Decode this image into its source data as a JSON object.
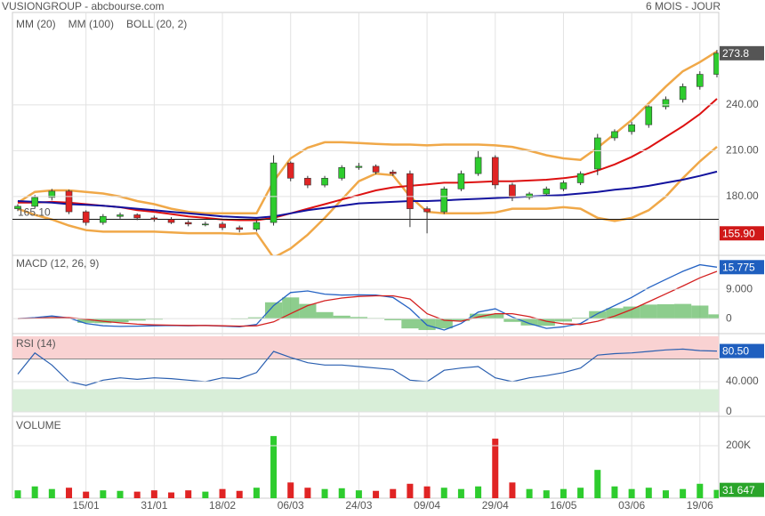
{
  "header": {
    "title": "VUSIONGROUP - abcbourse.com",
    "period": "6 MOIS - JOUR"
  },
  "chart_data": [
    {
      "type": "candlestick",
      "up_color": "#2ecc2e",
      "down_color": "#e02424",
      "open": [
        172,
        173.6,
        179.4,
        183.5,
        170,
        163,
        167,
        168,
        166,
        165,
        163,
        162,
        162,
        159.6,
        158.5,
        163,
        202,
        192,
        187.5,
        192,
        199,
        199.8,
        196,
        195,
        172,
        170,
        185,
        195,
        205.6,
        187.6,
        179.4,
        181.7,
        185,
        189,
        198,
        218.4,
        222.5,
        227,
        238.8,
        243.5,
        252,
        260
      ],
      "high": [
        175,
        181,
        185,
        184.5,
        171,
        168.5,
        169.5,
        169,
        167.5,
        166.5,
        164.5,
        163.5,
        163.5,
        161,
        164.5,
        207,
        203,
        193.5,
        193.5,
        200.5,
        202,
        201,
        197.5,
        197,
        173.5,
        186.5,
        197,
        210,
        207,
        189,
        183,
        186.5,
        190.5,
        196.5,
        221,
        224,
        229,
        240,
        245.5,
        254,
        262,
        276
      ],
      "low": [
        170.5,
        172,
        177.5,
        168.5,
        161,
        161.5,
        165.5,
        164.5,
        163.5,
        162,
        160.5,
        160.5,
        158,
        156.5,
        157,
        161,
        190,
        185.5,
        186,
        190.5,
        197.5,
        194.5,
        193.5,
        160,
        155.9,
        168.5,
        183.5,
        193.5,
        185,
        177,
        178,
        180,
        183.5,
        187.5,
        194,
        216.5,
        220.5,
        225,
        237,
        241.5,
        250,
        258
      ],
      "close": [
        173.6,
        179.4,
        183.5,
        170,
        163,
        167,
        168,
        166,
        165,
        163,
        162,
        162,
        159.6,
        158.5,
        163,
        202,
        192,
        187.5,
        192,
        199,
        199.8,
        196,
        195,
        172,
        170,
        185,
        195,
        205.6,
        187.6,
        179.4,
        181.7,
        185,
        189,
        195,
        218.4,
        222.5,
        227,
        238.8,
        243.5,
        252,
        260,
        273.8
      ],
      "series": [
        {
          "name": "MM (20)",
          "color": "#dd1111",
          "values": [
            176,
            176,
            176.5,
            176,
            175,
            174,
            173,
            171,
            170,
            168.5,
            167,
            166,
            165,
            164.5,
            164.5,
            166,
            169,
            172,
            175,
            178,
            181,
            184,
            186,
            187,
            188,
            189,
            189,
            189.5,
            190,
            190,
            190.5,
            191,
            192,
            193.5,
            197,
            201,
            206,
            212,
            219,
            226,
            234,
            244
          ]
        },
        {
          "name": "MM (100)",
          "color": "#12129e",
          "values": [
            177,
            176.5,
            176,
            175,
            174.5,
            174,
            173,
            172,
            171,
            170,
            169,
            168,
            167,
            166.5,
            166,
            167,
            169,
            171,
            172.5,
            174,
            175.5,
            176,
            176.5,
            177,
            177,
            177.5,
            178,
            178.5,
            179,
            179.5,
            180,
            180.5,
            181,
            182,
            183,
            184.5,
            185.5,
            187,
            189,
            191,
            193.5,
            196.3
          ]
        }
      ],
      "bands": {
        "name": "BOLL (20, 2)",
        "color": "#f0a848",
        "upper": [
          176,
          183,
          184,
          184,
          183,
          182,
          180,
          177,
          175,
          172,
          170,
          169,
          169,
          169,
          169,
          190,
          205,
          212,
          215.5,
          215.5,
          215,
          214.5,
          214,
          214,
          213.5,
          214,
          214,
          214,
          213.5,
          212.5,
          210,
          207,
          205,
          204,
          212,
          221,
          230,
          241,
          252,
          262,
          268,
          275
        ],
        "lower": [
          172,
          168,
          165,
          161,
          158,
          157,
          157,
          157,
          157,
          156.5,
          156,
          156,
          156,
          155.5,
          156,
          140,
          146,
          155,
          166,
          178,
          190,
          195,
          194,
          180,
          170,
          169,
          169,
          169,
          169.5,
          172,
          172,
          172,
          173,
          172,
          166,
          164,
          166,
          171,
          180,
          192,
          203,
          212.6
        ]
      },
      "reference_line": {
        "value": 165.1,
        "label": "165.10"
      },
      "low_label": {
        "value": 155.9,
        "label": "155.90"
      },
      "ylim": [
        141.5,
        300.5
      ],
      "yticks": [
        {
          "value": 180,
          "label": "180.00"
        },
        {
          "value": 210,
          "label": "210.00"
        },
        {
          "value": 240,
          "label": "240.00"
        }
      ],
      "grid": true
    },
    {
      "type": "macd",
      "title": "MACD (12, 26, 9)",
      "series": [
        {
          "color": "#2563c4",
          "values": [
            0,
            0.3,
            0.8,
            0.2,
            -1.5,
            -2.2,
            -2.4,
            -2.3,
            -2.2,
            -2.1,
            -2.2,
            -2.1,
            -2.3,
            -2.5,
            -1.8,
            4,
            8,
            8.5,
            7.5,
            7.2,
            7.3,
            7.2,
            6.5,
            3,
            -2,
            -3.5,
            -1.5,
            2,
            3,
            0.5,
            -1.5,
            -3,
            -2.5,
            -1.5,
            1.5,
            4,
            6.5,
            9.5,
            12,
            14.5,
            16.5,
            15.775
          ]
        },
        {
          "color": "#d42020",
          "values": [
            0,
            0.1,
            0.3,
            0.3,
            -0.2,
            -0.8,
            -1.3,
            -1.7,
            -1.9,
            -2,
            -2.1,
            -2.1,
            -2.2,
            -2.3,
            -2.2,
            -1,
            1.5,
            4,
            5.5,
            6.3,
            6.8,
            7,
            7,
            6,
            1.5,
            -0.5,
            -0.8,
            0.5,
            1.5,
            1.5,
            0.6,
            -0.8,
            -1.6,
            -1.8,
            -0.8,
            0.8,
            2.8,
            5.2,
            7.6,
            10,
            12.5,
            14.5
          ]
        }
      ],
      "histogram": {
        "color": "#5cb85c",
        "values": [
          0,
          0.2,
          0.5,
          -0.1,
          -1.3,
          -1.4,
          -1.1,
          -0.6,
          -0.3,
          -0.1,
          -0.1,
          0,
          -0.1,
          -0.2,
          0.4,
          5,
          6.5,
          4.5,
          2,
          0.9,
          0.5,
          0.2,
          -0.5,
          -3,
          -3.5,
          -3,
          -0.7,
          1.5,
          1.5,
          -1,
          -2.1,
          -2.2,
          -0.9,
          0.3,
          2.3,
          3.2,
          3.7,
          4.3,
          4.4,
          4.5,
          4,
          1.3
        ]
      },
      "ylim": [
        -4.6,
        19.4
      ],
      "yticks": [
        {
          "value": 9,
          "label": "9.000"
        },
        0
      ],
      "grid": true
    },
    {
      "type": "line",
      "title": "RSI (14)",
      "color": "#2a5fb0",
      "values": [
        50,
        78,
        62,
        40,
        35,
        42,
        45,
        43,
        45,
        44,
        42,
        40,
        45,
        44,
        52,
        80,
        72,
        65,
        62,
        62,
        60,
        58,
        56,
        42,
        40,
        55,
        58,
        60,
        45,
        40,
        45,
        48,
        52,
        58,
        75,
        77,
        78,
        80,
        82,
        83,
        81,
        80.5
      ],
      "value_labels": [
        null,
        null,
        null,
        null,
        null,
        null,
        null,
        null,
        null,
        null,
        null,
        null,
        null,
        null,
        null,
        null,
        null,
        null,
        null,
        null,
        null,
        null,
        null,
        null,
        null,
        null,
        null,
        null,
        null,
        null,
        null,
        null,
        null,
        null,
        null,
        null,
        null,
        null,
        null,
        null,
        null,
        "80.50"
      ],
      "zones": [
        {
          "from": 70,
          "to": 100,
          "color": "#f9d2d2"
        },
        {
          "from": 0,
          "to": 30,
          "color": "#d8eed8"
        }
      ],
      "ylim": [
        -5.9,
        103.5
      ],
      "yticks": [
        {
          "value": 40,
          "label": "40.000"
        },
        0
      ],
      "grid": true
    },
    {
      "type": "bar",
      "title": "VOLUME",
      "categories": [
        null,
        null,
        null,
        null,
        "15/01",
        null,
        null,
        null,
        "31/01",
        null,
        null,
        null,
        "18/02",
        null,
        null,
        null,
        "06/03",
        null,
        null,
        null,
        "24/03",
        null,
        null,
        null,
        "09/04",
        null,
        null,
        null,
        "29/04",
        null,
        null,
        null,
        "16/05",
        null,
        null,
        null,
        "03/06",
        null,
        null,
        null,
        "19/06",
        null
      ],
      "values": [
        30000,
        45000,
        35000,
        40000,
        25000,
        30000,
        28000,
        25000,
        30000,
        22000,
        30000,
        25000,
        35000,
        28000,
        40000,
        237000,
        60000,
        40000,
        35000,
        38000,
        30000,
        28000,
        35000,
        55000,
        45000,
        40000,
        35000,
        45000,
        227000,
        60000,
        35000,
        30000,
        35000,
        40000,
        108000,
        45000,
        35000,
        40000,
        30000,
        35000,
        55000,
        31647
      ],
      "value_labels": [
        null,
        null,
        null,
        null,
        null,
        null,
        null,
        null,
        null,
        null,
        null,
        null,
        null,
        null,
        null,
        null,
        null,
        null,
        null,
        null,
        null,
        null,
        null,
        null,
        null,
        null,
        null,
        null,
        null,
        null,
        null,
        null,
        null,
        null,
        null,
        null,
        null,
        null,
        null,
        null,
        null,
        "31 647"
      ],
      "ylim": [
        0,
        312000
      ],
      "yticks": [
        {
          "value": 200000,
          "label": "200K"
        }
      ],
      "grid": true
    }
  ]
}
